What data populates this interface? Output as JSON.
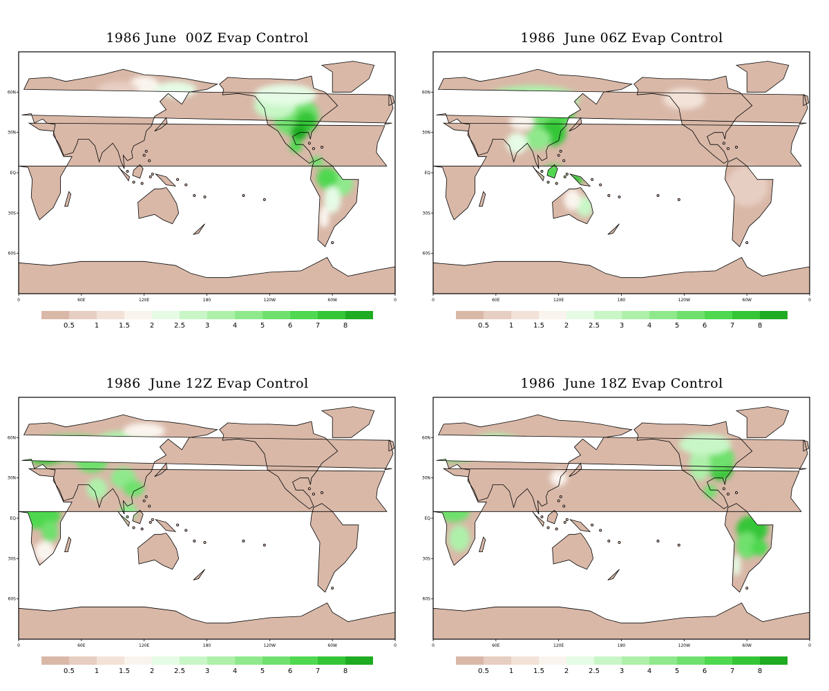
{
  "colorbar": {
    "colors": [
      "#d9b8a8",
      "#e7cec2",
      "#f2e2d8",
      "#faf4ee",
      "#e5fbe5",
      "#c8f6c6",
      "#aef0aa",
      "#8fe98c",
      "#6fe06d",
      "#4fd850",
      "#35c637",
      "#1fab22"
    ],
    "labels": [
      "0.5",
      "1",
      "1.5",
      "2",
      "2.5",
      "3",
      "4",
      "5",
      "6",
      "7",
      "8"
    ]
  },
  "axes": {
    "lon_ticks": [
      "0",
      "60E",
      "120E",
      "180",
      "120W",
      "60W",
      "0"
    ],
    "lat_ticks": [
      "60N",
      "30N",
      "EQ",
      "30S",
      "60S"
    ]
  },
  "panels": [
    {
      "title": "1986 June  00Z Evap Control",
      "hour": 0
    },
    {
      "title": "1986  June 06Z Evap Control",
      "hour": 6
    },
    {
      "title": "1986  June 12Z Evap Control",
      "hour": 12
    },
    {
      "title": "1986  June 18Z Evap Control",
      "hour": 18
    }
  ]
}
